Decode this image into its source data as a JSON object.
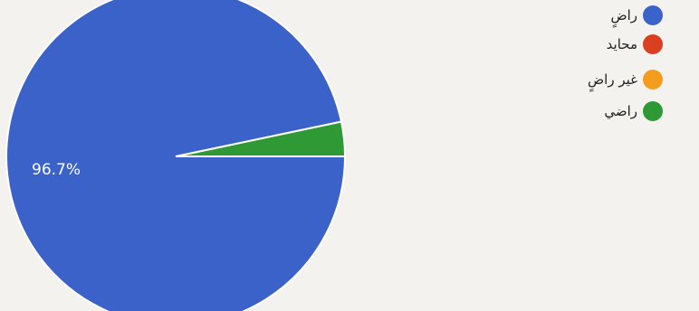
{
  "chart_data": {
    "type": "pie",
    "categories": [
      "راضٍ",
      "محايد",
      "غير راضٍ",
      "راضي"
    ],
    "values": [
      96.7,
      0,
      0,
      3.3
    ],
    "colors": [
      "#3b62c9",
      "#d8401f",
      "#f49c1d",
      "#2f9a35"
    ],
    "data_labels": [
      "96.7%",
      "",
      "",
      ""
    ],
    "legend_position": "right"
  }
}
